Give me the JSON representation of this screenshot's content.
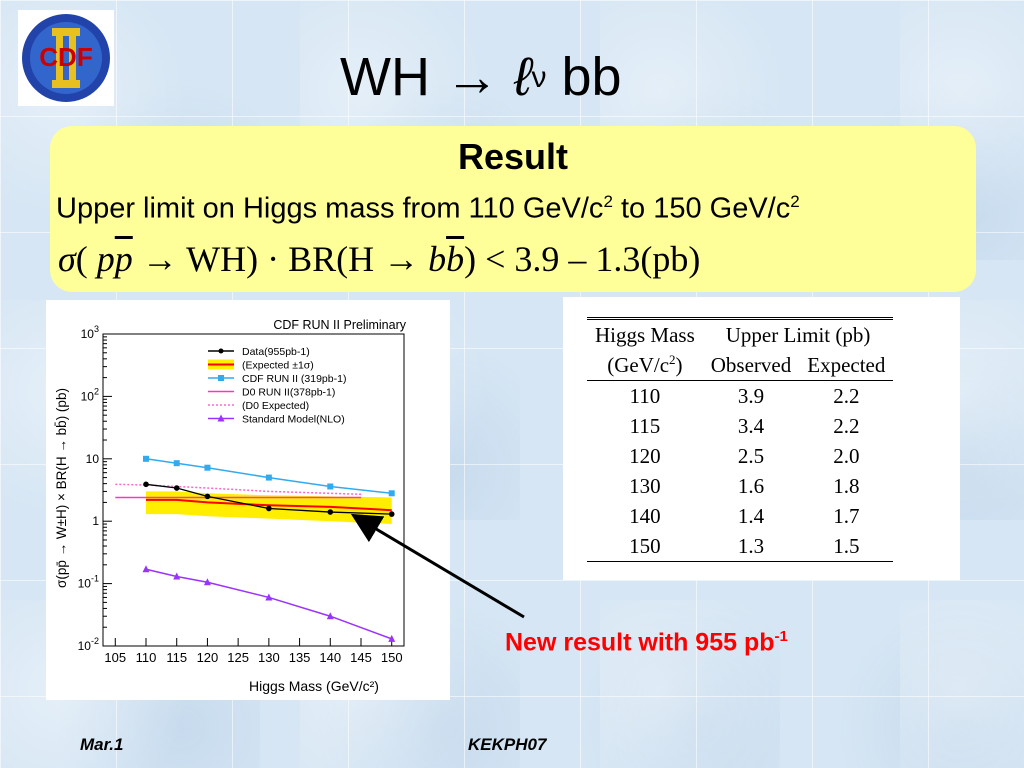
{
  "logo": {
    "text": "CDF",
    "numeral": "II"
  },
  "title": {
    "prefix": "WH → ",
    "lepton": "ℓ",
    "nu": "ν",
    "suffix": " bb"
  },
  "result": {
    "heading": "Result",
    "line_text": "Upper limit on Higgs mass from 110 GeV/c",
    "line_sup1": "2",
    "line_mid": " to 150 GeV/c",
    "line_sup2": "2",
    "formula_sigma": "σ",
    "formula_open": "( ",
    "formula_p1": "p",
    "formula_pbar": "p",
    "formula_mid": " → WH) · BR(H → ",
    "formula_b1": "b",
    "formula_bbar": "b",
    "formula_end": ") < 3.9 – 1.3(pb)"
  },
  "table": {
    "header1": [
      "Higgs Mass",
      "Upper Limit (pb)"
    ],
    "header2_mass": "(GeV/c",
    "header2_sup": "2",
    "header2_close": ")",
    "header2_obs": "Observed",
    "header2_exp": "Expected",
    "rows": [
      [
        "110",
        "3.9",
        "2.2"
      ],
      [
        "115",
        "3.4",
        "2.2"
      ],
      [
        "120",
        "2.5",
        "2.0"
      ],
      [
        "130",
        "1.6",
        "1.8"
      ],
      [
        "140",
        "1.4",
        "1.7"
      ],
      [
        "150",
        "1.3",
        "1.5"
      ]
    ]
  },
  "callout": {
    "text": "New result with 955 pb",
    "sup": "-1",
    "color": "#ff0000"
  },
  "footer": {
    "left": "Mar.1",
    "right": "KEKPH07"
  },
  "chart_data": {
    "type": "line",
    "title": "CDF RUN II Preliminary",
    "xlabel": "Higgs Mass (GeV/c²)",
    "ylabel": "σ(pp̄ → W±H) × BR(H → bb̄) (pb)",
    "xlim": [
      103,
      152
    ],
    "ylim": [
      0.01,
      1000
    ],
    "yscale": "log",
    "x_ticks": [
      "105",
      "110",
      "115",
      "120",
      "125",
      "130",
      "135",
      "140",
      "145",
      "150"
    ],
    "y_ticks": [
      "10-2",
      "10-1",
      "1",
      "10",
      "102",
      "103"
    ],
    "legend": [
      "Data(955pb-1)",
      "(Expected ±1σ)",
      "CDF RUN II (319pb-1)",
      "D0 RUN II(378pb-1)",
      "(D0 Expected)",
      "Standard Model(NLO)"
    ],
    "legend_position": "top",
    "series": [
      {
        "name": "Data(955pb-1)",
        "color": "#000000",
        "x": [
          110,
          115,
          120,
          130,
          140,
          150
        ],
        "y": [
          3.9,
          3.4,
          2.5,
          1.6,
          1.4,
          1.3
        ]
      },
      {
        "name": "(Expected ±1σ)",
        "color": "#ff0000",
        "band_color": "#ffee00",
        "x": [
          110,
          115,
          120,
          130,
          140,
          150
        ],
        "y": [
          2.2,
          2.2,
          2.0,
          1.8,
          1.7,
          1.5
        ],
        "y_low": [
          1.3,
          1.3,
          1.2,
          1.1,
          1.0,
          0.9
        ],
        "y_high": [
          3.0,
          3.0,
          2.8,
          2.6,
          2.5,
          2.4
        ]
      },
      {
        "name": "CDF RUN II (319pb-1)",
        "color": "#33aaee",
        "x": [
          110,
          115,
          120,
          130,
          140,
          150
        ],
        "y": [
          10,
          8.5,
          7.2,
          5.0,
          3.6,
          2.8
        ]
      },
      {
        "name": "D0 RUN II(378pb-1)",
        "color": "#ff33cc",
        "x": [
          105,
          110,
          115,
          120,
          125,
          130,
          135,
          140,
          145
        ],
        "y": [
          2.4,
          2.4,
          2.4,
          2.4,
          2.4,
          2.4,
          2.4,
          2.4,
          2.4
        ]
      },
      {
        "name": "(D0 Expected)",
        "color": "#ff66cc",
        "x": [
          105,
          110,
          115,
          120,
          125,
          130,
          135,
          140,
          145
        ],
        "y": [
          3.9,
          3.8,
          3.6,
          3.4,
          3.2,
          3.0,
          2.9,
          2.8,
          2.7
        ]
      },
      {
        "name": "Standard Model(NLO)",
        "color": "#9933ff",
        "x": [
          110,
          115,
          120,
          130,
          140,
          150
        ],
        "y": [
          0.17,
          0.13,
          0.105,
          0.06,
          0.03,
          0.013
        ]
      }
    ]
  }
}
